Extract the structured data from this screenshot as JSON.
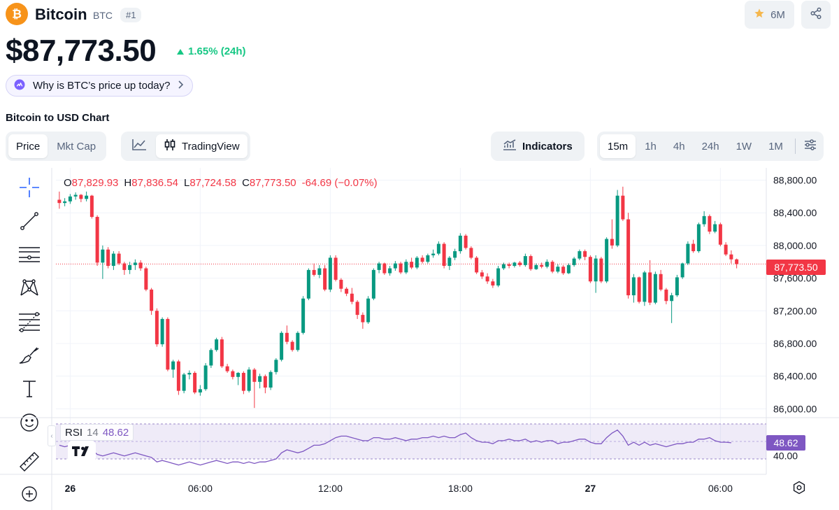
{
  "coin": {
    "name": "Bitcoin",
    "symbol": "BTC",
    "rank": "#1",
    "watchlist_count": "6M"
  },
  "price": {
    "value": "$87,773.50",
    "change": "1.65% (24h)",
    "change_direction": "up",
    "change_color": "#16c784"
  },
  "why_prompt": "Why is BTC’s price up today?",
  "chart_title": "Bitcoin to USD Chart",
  "tabs": {
    "metric": [
      {
        "label": "Price",
        "active": true
      },
      {
        "label": "Mkt Cap",
        "active": false
      }
    ],
    "chart_type": [
      {
        "label": "",
        "icon": "line-chart-icon",
        "active": false
      },
      {
        "label": "TradingView",
        "icon": "candlestick-icon",
        "active": true
      }
    ],
    "indicators_label": "Indicators",
    "ranges": [
      {
        "label": "15m",
        "active": true
      },
      {
        "label": "1h",
        "active": false
      },
      {
        "label": "4h",
        "active": false
      },
      {
        "label": "24h",
        "active": false
      },
      {
        "label": "1W",
        "active": false
      },
      {
        "label": "1M",
        "active": false
      }
    ]
  },
  "tools": [
    {
      "name": "crosshair-tool",
      "icon": "crosshair-icon",
      "active": true
    },
    {
      "name": "trend-line-tool",
      "icon": "trend-line-icon"
    },
    {
      "name": "horizontal-lines-tool",
      "icon": "parallel-lines-icon"
    },
    {
      "name": "pattern-tool",
      "icon": "xabcd-pattern-icon"
    },
    {
      "name": "fib-tool",
      "icon": "fib-retracement-icon"
    },
    {
      "name": "brush-tool",
      "icon": "brush-icon"
    },
    {
      "name": "text-tool",
      "icon": "text-icon"
    },
    {
      "name": "emoji-tool",
      "icon": "smiley-icon"
    },
    {
      "name": "measure-tool",
      "icon": "ruler-icon"
    },
    {
      "name": "zoom-tool",
      "icon": "zoom-in-icon"
    }
  ],
  "ohlc": {
    "o_key": "O",
    "o": "87,829.93",
    "h_key": "H",
    "h": "87,836.54",
    "l_key": "L",
    "l": "87,724.58",
    "c_key": "C",
    "c": "87,773.50",
    "delta": "-64.69 (−0.07%)"
  },
  "rsi": {
    "name": "RSI",
    "period": "14",
    "value": "48.62",
    "color": "#7e57c2"
  },
  "colors": {
    "up": "#089981",
    "down": "#f23645",
    "rsi_line": "#7e57c2"
  },
  "chart_data": {
    "type": "candlestick",
    "title": "Bitcoin to USD Chart",
    "ylim": [
      85900,
      88950
    ],
    "yticks": [
      88800,
      88400,
      88000,
      87600,
      87200,
      86800,
      86400,
      86000
    ],
    "ytick_labels": [
      "88,800.00",
      "88,400.00",
      "88,000.00",
      "87,600.00",
      "87,200.00",
      "86,800.00",
      "86,400.00",
      "86,000.00"
    ],
    "x_labels": [
      "26",
      "06:00",
      "12:00",
      "18:00",
      "27",
      "06:00"
    ],
    "x_label_index": [
      2,
      26,
      50,
      74,
      98,
      122
    ],
    "last_price": 87773.5,
    "last_price_label": "87,773.50",
    "candles": [
      [
        88560,
        88660,
        88450,
        88520
      ],
      [
        88520,
        88580,
        88480,
        88540
      ],
      [
        88540,
        88630,
        88510,
        88600
      ],
      [
        88600,
        88650,
        88560,
        88620
      ],
      [
        88620,
        88630,
        88530,
        88570
      ],
      [
        88570,
        88660,
        88540,
        88610
      ],
      [
        88610,
        88620,
        88330,
        88350
      ],
      [
        88350,
        88370,
        87750,
        87790
      ],
      [
        87790,
        88000,
        87590,
        87950
      ],
      [
        87950,
        87980,
        87720,
        87750
      ],
      [
        87750,
        87930,
        87700,
        87900
      ],
      [
        87900,
        87930,
        87760,
        87780
      ],
      [
        87780,
        87800,
        87640,
        87700
      ],
      [
        87700,
        87800,
        87650,
        87760
      ],
      [
        87760,
        87830,
        87700,
        87790
      ],
      [
        87790,
        87820,
        87690,
        87720
      ],
      [
        87720,
        87740,
        87440,
        87460
      ],
      [
        87460,
        87480,
        87150,
        87200
      ],
      [
        87200,
        87230,
        86760,
        86790
      ],
      [
        86790,
        87120,
        86760,
        87100
      ],
      [
        87100,
        87120,
        86460,
        86480
      ],
      [
        86480,
        86600,
        86380,
        86580
      ],
      [
        86580,
        86600,
        86170,
        86220
      ],
      [
        86220,
        86440,
        86190,
        86420
      ],
      [
        86420,
        86470,
        86360,
        86440
      ],
      [
        86440,
        86460,
        86180,
        86200
      ],
      [
        86200,
        86290,
        86160,
        86240
      ],
      [
        86240,
        86560,
        86220,
        86530
      ],
      [
        86530,
        86740,
        86500,
        86720
      ],
      [
        86720,
        86870,
        86700,
        86850
      ],
      [
        86850,
        86880,
        86500,
        86520
      ],
      [
        86520,
        86550,
        86440,
        86460
      ],
      [
        86460,
        86480,
        86360,
        86390
      ],
      [
        86390,
        86450,
        86290,
        86440
      ],
      [
        86440,
        86460,
        86180,
        86220
      ],
      [
        86220,
        86510,
        86200,
        86480
      ],
      [
        86480,
        86500,
        86010,
        86330
      ],
      [
        86330,
        86430,
        86250,
        86400
      ],
      [
        86400,
        86420,
        86190,
        86260
      ],
      [
        86260,
        86470,
        86230,
        86450
      ],
      [
        86450,
        86620,
        86420,
        86600
      ],
      [
        86600,
        86950,
        86580,
        86930
      ],
      [
        86930,
        87020,
        86790,
        86820
      ],
      [
        86820,
        86840,
        86700,
        86720
      ],
      [
        86720,
        86950,
        86700,
        86930
      ],
      [
        86930,
        87380,
        86910,
        87350
      ],
      [
        87350,
        87720,
        87330,
        87700
      ],
      [
        87700,
        87780,
        87620,
        87640
      ],
      [
        87640,
        87760,
        87600,
        87720
      ],
      [
        87720,
        87760,
        87440,
        87460
      ],
      [
        87460,
        87880,
        87430,
        87850
      ],
      [
        87850,
        87880,
        87560,
        87580
      ],
      [
        87580,
        87600,
        87430,
        87470
      ],
      [
        87470,
        87490,
        87380,
        87410
      ],
      [
        87410,
        87480,
        87280,
        87310
      ],
      [
        87310,
        87330,
        87100,
        87150
      ],
      [
        87150,
        87180,
        86980,
        87060
      ],
      [
        87060,
        87380,
        87040,
        87350
      ],
      [
        87350,
        87720,
        87330,
        87700
      ],
      [
        87700,
        87800,
        87660,
        87780
      ],
      [
        87780,
        87790,
        87640,
        87660
      ],
      [
        87660,
        87750,
        87630,
        87720
      ],
      [
        87720,
        87810,
        87690,
        87780
      ],
      [
        87780,
        87800,
        87650,
        87670
      ],
      [
        87670,
        87830,
        87650,
        87800
      ],
      [
        87800,
        87850,
        87710,
        87730
      ],
      [
        87730,
        87870,
        87710,
        87850
      ],
      [
        87850,
        87880,
        87780,
        87800
      ],
      [
        87800,
        87900,
        87780,
        87880
      ],
      [
        87880,
        87950,
        87850,
        87900
      ],
      [
        87900,
        88050,
        87880,
        88020
      ],
      [
        88020,
        88040,
        87720,
        87750
      ],
      [
        87750,
        87870,
        87700,
        87850
      ],
      [
        87850,
        87960,
        87820,
        87930
      ],
      [
        87930,
        88150,
        87900,
        88120
      ],
      [
        88120,
        88140,
        87950,
        87970
      ],
      [
        87970,
        87990,
        87830,
        87850
      ],
      [
        87850,
        87870,
        87650,
        87670
      ],
      [
        87670,
        87700,
        87590,
        87620
      ],
      [
        87620,
        87660,
        87530,
        87560
      ],
      [
        87560,
        87590,
        87480,
        87510
      ],
      [
        87510,
        87750,
        87490,
        87720
      ],
      [
        87720,
        87790,
        87700,
        87770
      ],
      [
        87770,
        87790,
        87720,
        87750
      ],
      [
        87750,
        87800,
        87730,
        87790
      ],
      [
        87790,
        87810,
        87740,
        87760
      ],
      [
        87760,
        87900,
        87740,
        87870
      ],
      [
        87870,
        87890,
        87690,
        87710
      ],
      [
        87710,
        87780,
        87700,
        87760
      ],
      [
        87760,
        87790,
        87720,
        87740
      ],
      [
        87740,
        87830,
        87720,
        87800
      ],
      [
        87800,
        87820,
        87660,
        87680
      ],
      [
        87680,
        87770,
        87660,
        87740
      ],
      [
        87740,
        87760,
        87640,
        87660
      ],
      [
        87660,
        87780,
        87650,
        87760
      ],
      [
        87760,
        87860,
        87740,
        87840
      ],
      [
        87840,
        87950,
        87820,
        87930
      ],
      [
        87930,
        87950,
        87820,
        87860
      ],
      [
        87860,
        87880,
        87540,
        87560
      ],
      [
        87560,
        87880,
        87420,
        87840
      ],
      [
        87840,
        87860,
        87540,
        87560
      ],
      [
        87560,
        88100,
        87540,
        88080
      ],
      [
        88080,
        88320,
        87960,
        88000
      ],
      [
        88000,
        88680,
        87980,
        88610
      ],
      [
        88610,
        88720,
        88300,
        88320
      ],
      [
        88320,
        88400,
        87350,
        87390
      ],
      [
        87390,
        87650,
        87300,
        87610
      ],
      [
        87610,
        87620,
        87290,
        87310
      ],
      [
        87310,
        87690,
        87260,
        87670
      ],
      [
        87670,
        87820,
        87270,
        87300
      ],
      [
        87300,
        87680,
        87280,
        87650
      ],
      [
        87650,
        87700,
        87440,
        87460
      ],
      [
        87460,
        87480,
        87280,
        87320
      ],
      [
        87320,
        87420,
        87050,
        87390
      ],
      [
        87390,
        87640,
        87370,
        87610
      ],
      [
        87610,
        87790,
        87590,
        87780
      ],
      [
        87780,
        88050,
        87760,
        88020
      ],
      [
        88020,
        88070,
        87910,
        87930
      ],
      [
        87930,
        88280,
        87910,
        88260
      ],
      [
        88260,
        88420,
        88230,
        88360
      ],
      [
        88360,
        88380,
        88140,
        88170
      ],
      [
        88170,
        88300,
        88150,
        88260
      ],
      [
        88260,
        88280,
        87990,
        88010
      ],
      [
        88010,
        88040,
        87870,
        87890
      ],
      [
        87890,
        87940,
        87780,
        87830
      ],
      [
        87830,
        87840,
        87720,
        87773.5
      ]
    ],
    "rsi_ylim": [
      38,
      61
    ],
    "rsi_band": [
      30,
      70
    ],
    "rsi_tick_label": "40.00",
    "rsi_values": [
      47,
      46,
      47,
      46,
      45,
      46,
      44,
      41,
      40,
      41,
      42,
      41,
      40,
      41,
      42,
      41,
      40,
      39,
      36,
      37,
      36,
      35,
      34,
      35,
      36,
      35,
      34,
      35,
      36,
      37,
      36,
      35,
      36,
      36,
      35,
      36,
      35,
      36,
      36,
      37,
      38,
      42,
      44,
      43,
      42,
      43,
      45,
      47,
      47,
      48,
      50,
      52,
      53,
      53,
      52,
      51,
      50,
      50,
      52,
      52,
      51,
      51,
      52,
      51,
      50,
      51,
      51,
      52,
      52,
      53,
      52,
      53,
      52,
      52,
      54,
      55,
      52,
      50,
      49,
      49,
      48,
      50,
      50,
      51,
      50,
      50,
      51,
      49,
      50,
      49,
      50,
      50,
      48,
      49,
      49,
      50,
      51,
      51,
      49,
      48,
      48,
      52,
      55,
      57,
      53,
      47,
      49,
      47,
      49,
      47,
      48,
      47,
      46,
      47,
      48,
      48,
      49,
      49,
      51,
      51,
      52,
      50,
      49,
      49,
      48.62
    ]
  }
}
